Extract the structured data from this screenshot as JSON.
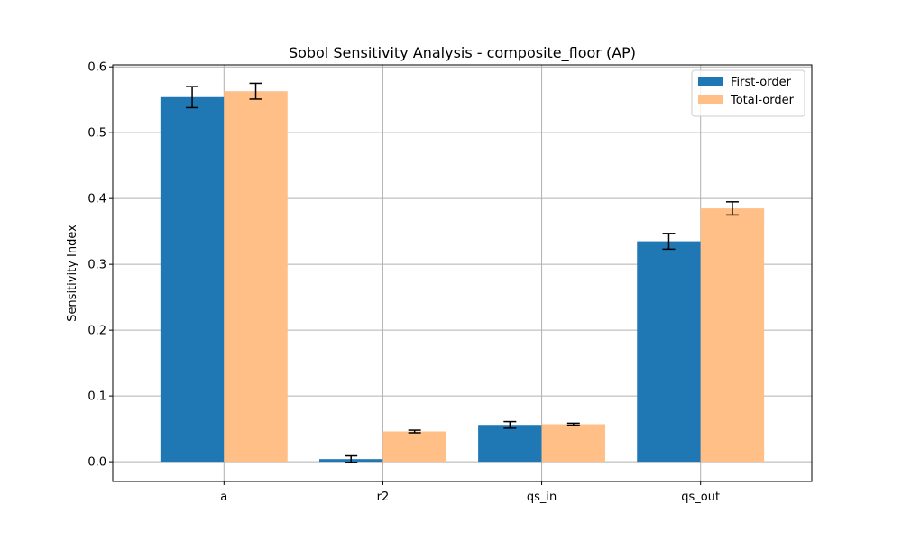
{
  "chart_data": {
    "type": "bar",
    "title": "Sobol Sensitivity Analysis - composite_floor (AP)",
    "xlabel": "",
    "ylabel": "Sensitivity Index",
    "categories": [
      "a",
      "r2",
      "qs_in",
      "qs_out"
    ],
    "series": [
      {
        "name": "First-order",
        "color": "#1f77b4",
        "values": [
          0.554,
          0.004,
          0.056,
          0.335
        ],
        "errors": [
          0.016,
          0.005,
          0.005,
          0.012
        ]
      },
      {
        "name": "Total-order",
        "color": "#ffbf86",
        "values": [
          0.563,
          0.046,
          0.057,
          0.385
        ],
        "errors": [
          0.012,
          0.002,
          0.0015,
          0.01
        ]
      }
    ],
    "ylim": [
      -0.03,
      0.603
    ],
    "yticks": [
      0.0,
      0.1,
      0.2,
      0.3,
      0.4,
      0.5,
      0.6
    ],
    "ytick_labels": [
      "0.0",
      "0.1",
      "0.2",
      "0.3",
      "0.4",
      "0.5",
      "0.6"
    ],
    "grid": true,
    "legend_position": "top-right"
  }
}
